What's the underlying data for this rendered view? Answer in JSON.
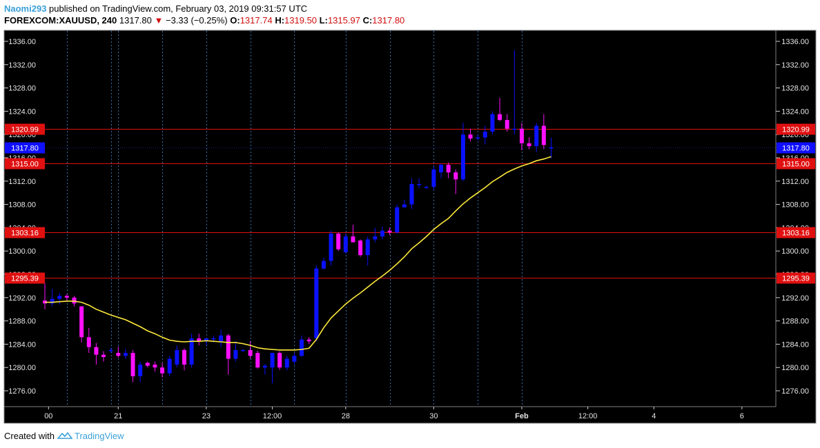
{
  "header": {
    "user": "Naomi293",
    "published": "published on TradingView.com, February 03, 2019 09:31:57 UTC",
    "symbol": "FOREXCOM:XAUUSD, 240",
    "last": "1317.80",
    "change_arrow": "down-triangle-icon",
    "change": "−3.33 (−0.25%)",
    "o_label": "O:",
    "o_value": "1317.74",
    "h_label": "H:",
    "h_value": "1319.50",
    "l_label": "L:",
    "l_value": "1315.97",
    "c_label": "C:",
    "c_value": "1317.80"
  },
  "footer": {
    "created_with": "Created with",
    "brand": "TradingView",
    "logo_icon": "tradingview-cloud-icon"
  },
  "colors": {
    "background": "#000000",
    "up_candle": "#0a12ff",
    "down_candle": "#ff10ff",
    "ma_line": "#ffeb3b",
    "level_line": "#e01010",
    "last_price_tag": "#1010ff",
    "session_line": "#3a6ea5"
  },
  "chart_data": {
    "type": "candlestick",
    "symbol": "FOREXCOM:XAUUSD",
    "timeframe": "240",
    "ylim": [
      1272.5,
      1338.5
    ],
    "y_ticks": [
      "1276.00",
      "1280.00",
      "1284.00",
      "1288.00",
      "1292.00",
      "1296.00",
      "1300.00",
      "1304.00",
      "1308.00",
      "1312.00",
      "1316.00",
      "1320.00",
      "1324.00",
      "1328.00",
      "1332.00",
      "1336.00"
    ],
    "x_ticks": [
      {
        "label": "00",
        "bar": 0.5
      },
      {
        "label": "21",
        "bar": 10
      },
      {
        "label": "23",
        "bar": 22
      },
      {
        "label": "12:00",
        "bar": 31
      },
      {
        "label": "28",
        "bar": 41
      },
      {
        "label": "30",
        "bar": 53
      },
      {
        "label": "Feb",
        "bar": 65
      },
      {
        "label": "12:00",
        "bar": 74
      },
      {
        "label": "4",
        "bar": 83
      },
      {
        "label": "6",
        "bar": 95
      }
    ],
    "session_lines": [
      3,
      9,
      10,
      16,
      22,
      28,
      34,
      41,
      47,
      53,
      59,
      65
    ],
    "levels": [
      1320.99,
      1315.0,
      1303.16,
      1295.39
    ],
    "level_labels": [
      "1320.99",
      "1315.00",
      "1303.16",
      "1295.39"
    ],
    "last_price": 1317.8,
    "last_price_label": "1317.80",
    "candles": [
      {
        "o": 1291.5,
        "h": 1294.5,
        "l": 1290.0,
        "c": 1291.0
      },
      {
        "o": 1291.0,
        "h": 1293.5,
        "l": 1290.5,
        "c": 1291.8
      },
      {
        "o": 1291.8,
        "h": 1292.8,
        "l": 1290.8,
        "c": 1292.3
      },
      {
        "o": 1292.3,
        "h": 1292.6,
        "l": 1291.5,
        "c": 1292.0
      },
      {
        "o": 1292.0,
        "h": 1292.3,
        "l": 1290.5,
        "c": 1291.0
      },
      {
        "o": 1290.5,
        "h": 1290.5,
        "l": 1284.3,
        "c": 1285.2
      },
      {
        "o": 1285.2,
        "h": 1286.8,
        "l": 1282.5,
        "c": 1283.5
      },
      {
        "o": 1283.5,
        "h": 1284.2,
        "l": 1280.5,
        "c": 1282.2
      },
      {
        "o": 1282.2,
        "h": 1282.8,
        "l": 1281.0,
        "c": 1281.8
      },
      {
        "o": 1283.0,
        "h": 1283.4,
        "l": 1282.5,
        "c": 1283.0
      },
      {
        "o": 1282.5,
        "h": 1283.6,
        "l": 1281.7,
        "c": 1282.0
      },
      {
        "o": 1282.0,
        "h": 1283.2,
        "l": 1281.5,
        "c": 1282.5
      },
      {
        "o": 1282.5,
        "h": 1283.0,
        "l": 1277.5,
        "c": 1278.5
      },
      {
        "o": 1278.5,
        "h": 1281.0,
        "l": 1277.5,
        "c": 1280.5
      },
      {
        "o": 1280.8,
        "h": 1281.0,
        "l": 1280.0,
        "c": 1280.3
      },
      {
        "o": 1280.5,
        "h": 1281.0,
        "l": 1279.3,
        "c": 1280.0
      },
      {
        "o": 1280.0,
        "h": 1280.8,
        "l": 1278.3,
        "c": 1279.0
      },
      {
        "o": 1279.0,
        "h": 1282.0,
        "l": 1278.5,
        "c": 1281.5
      },
      {
        "o": 1280.5,
        "h": 1283.8,
        "l": 1280.0,
        "c": 1283.0
      },
      {
        "o": 1283.0,
        "h": 1283.3,
        "l": 1279.5,
        "c": 1280.5
      },
      {
        "o": 1280.5,
        "h": 1285.8,
        "l": 1280.0,
        "c": 1285.0
      },
      {
        "o": 1285.0,
        "h": 1285.8,
        "l": 1283.8,
        "c": 1284.5
      },
      {
        "o": 1284.5,
        "h": 1285.0,
        "l": 1283.8,
        "c": 1285.0
      },
      {
        "o": 1285.0,
        "h": 1285.5,
        "l": 1284.3,
        "c": 1285.0
      },
      {
        "o": 1284.5,
        "h": 1286.5,
        "l": 1283.5,
        "c": 1285.5
      },
      {
        "o": 1285.5,
        "h": 1285.8,
        "l": 1278.8,
        "c": 1281.5
      },
      {
        "o": 1281.5,
        "h": 1284.5,
        "l": 1281.0,
        "c": 1283.0
      },
      {
        "o": 1283.0,
        "h": 1283.2,
        "l": 1282.7,
        "c": 1283.0
      },
      {
        "o": 1283.0,
        "h": 1284.5,
        "l": 1281.5,
        "c": 1282.0
      },
      {
        "o": 1282.5,
        "h": 1282.9,
        "l": 1279.8,
        "c": 1280.0
      },
      {
        "o": 1280.0,
        "h": 1280.6,
        "l": 1278.8,
        "c": 1280.3
      },
      {
        "o": 1280.0,
        "h": 1282.5,
        "l": 1277.3,
        "c": 1282.5
      },
      {
        "o": 1282.5,
        "h": 1282.8,
        "l": 1279.6,
        "c": 1280.0
      },
      {
        "o": 1280.0,
        "h": 1282.0,
        "l": 1279.5,
        "c": 1281.5
      },
      {
        "o": 1281.0,
        "h": 1282.5,
        "l": 1280.5,
        "c": 1282.0
      },
      {
        "o": 1282.0,
        "h": 1285.5,
        "l": 1281.8,
        "c": 1284.8
      },
      {
        "o": 1284.8,
        "h": 1285.2,
        "l": 1284.0,
        "c": 1284.5
      },
      {
        "o": 1285.0,
        "h": 1297.5,
        "l": 1284.5,
        "c": 1297.0
      },
      {
        "o": 1297.0,
        "h": 1298.8,
        "l": 1296.8,
        "c": 1298.3
      },
      {
        "o": 1298.3,
        "h": 1303.5,
        "l": 1297.5,
        "c": 1303.0
      },
      {
        "o": 1303.0,
        "h": 1303.2,
        "l": 1300.0,
        "c": 1300.3
      },
      {
        "o": 1299.8,
        "h": 1303.0,
        "l": 1299.5,
        "c": 1302.5
      },
      {
        "o": 1302.5,
        "h": 1304.5,
        "l": 1301.5,
        "c": 1301.5
      },
      {
        "o": 1301.8,
        "h": 1302.0,
        "l": 1299.0,
        "c": 1299.3
      },
      {
        "o": 1299.3,
        "h": 1302.5,
        "l": 1297.5,
        "c": 1302.0
      },
      {
        "o": 1302.0,
        "h": 1304.0,
        "l": 1301.5,
        "c": 1302.5
      },
      {
        "o": 1302.5,
        "h": 1304.2,
        "l": 1302.0,
        "c": 1303.5
      },
      {
        "o": 1303.5,
        "h": 1304.0,
        "l": 1302.7,
        "c": 1303.2
      },
      {
        "o": 1303.2,
        "h": 1308.0,
        "l": 1303.0,
        "c": 1307.5
      },
      {
        "o": 1307.5,
        "h": 1308.8,
        "l": 1307.5,
        "c": 1308.0
      },
      {
        "o": 1308.0,
        "h": 1312.5,
        "l": 1307.2,
        "c": 1311.5
      },
      {
        "o": 1311.5,
        "h": 1312.5,
        "l": 1310.8,
        "c": 1311.5
      },
      {
        "o": 1311.0,
        "h": 1311.2,
        "l": 1310.7,
        "c": 1311.0
      },
      {
        "o": 1311.0,
        "h": 1314.5,
        "l": 1310.5,
        "c": 1314.0
      },
      {
        "o": 1313.5,
        "h": 1315.0,
        "l": 1312.5,
        "c": 1314.8
      },
      {
        "o": 1314.8,
        "h": 1315.2,
        "l": 1312.5,
        "c": 1313.5
      },
      {
        "o": 1313.5,
        "h": 1314.0,
        "l": 1309.8,
        "c": 1312.3
      },
      {
        "o": 1312.3,
        "h": 1322.0,
        "l": 1312.0,
        "c": 1320.0
      },
      {
        "o": 1320.0,
        "h": 1321.0,
        "l": 1318.8,
        "c": 1319.3
      },
      {
        "o": 1319.5,
        "h": 1320.0,
        "l": 1319.0,
        "c": 1319.5
      },
      {
        "o": 1319.5,
        "h": 1321.5,
        "l": 1318.3,
        "c": 1320.5
      },
      {
        "o": 1320.5,
        "h": 1324.0,
        "l": 1320.0,
        "c": 1323.5
      },
      {
        "o": 1323.5,
        "h": 1326.3,
        "l": 1322.3,
        "c": 1322.5
      },
      {
        "o": 1322.5,
        "h": 1323.5,
        "l": 1320.5,
        "c": 1321.0
      },
      {
        "o": 1321.0,
        "h": 1334.5,
        "l": 1320.0,
        "c": 1321.0
      },
      {
        "o": 1321.0,
        "h": 1322.0,
        "l": 1317.3,
        "c": 1318.5
      },
      {
        "o": 1318.5,
        "h": 1319.5,
        "l": 1317.5,
        "c": 1318.0
      },
      {
        "o": 1318.0,
        "h": 1322.0,
        "l": 1317.0,
        "c": 1321.5
      },
      {
        "o": 1321.5,
        "h": 1323.5,
        "l": 1317.5,
        "c": 1318.2
      },
      {
        "o": 1317.7,
        "h": 1319.5,
        "l": 1315.9,
        "c": 1317.8
      }
    ],
    "ma": [
      1291.2,
      1291.2,
      1291.3,
      1291.4,
      1291.4,
      1291.2,
      1290.7,
      1290.0,
      1289.5,
      1289.0,
      1288.6,
      1288.2,
      1287.6,
      1287.0,
      1286.3,
      1285.8,
      1285.2,
      1284.7,
      1284.5,
      1284.4,
      1284.5,
      1284.5,
      1284.6,
      1284.5,
      1284.4,
      1284.3,
      1284.3,
      1284.1,
      1283.8,
      1283.4,
      1283.2,
      1283.1,
      1283.0,
      1283.0,
      1283.0,
      1283.1,
      1283.3,
      1284.8,
      1286.8,
      1288.5,
      1289.7,
      1290.9,
      1291.9,
      1292.8,
      1293.8,
      1294.8,
      1295.7,
      1296.7,
      1297.8,
      1299.0,
      1300.4,
      1301.4,
      1302.5,
      1303.7,
      1304.7,
      1305.6,
      1306.9,
      1308.1,
      1309.1,
      1310.0,
      1310.9,
      1311.9,
      1312.7,
      1313.5,
      1314.1,
      1314.6,
      1315.0,
      1315.5,
      1315.8,
      1316.2
    ]
  }
}
